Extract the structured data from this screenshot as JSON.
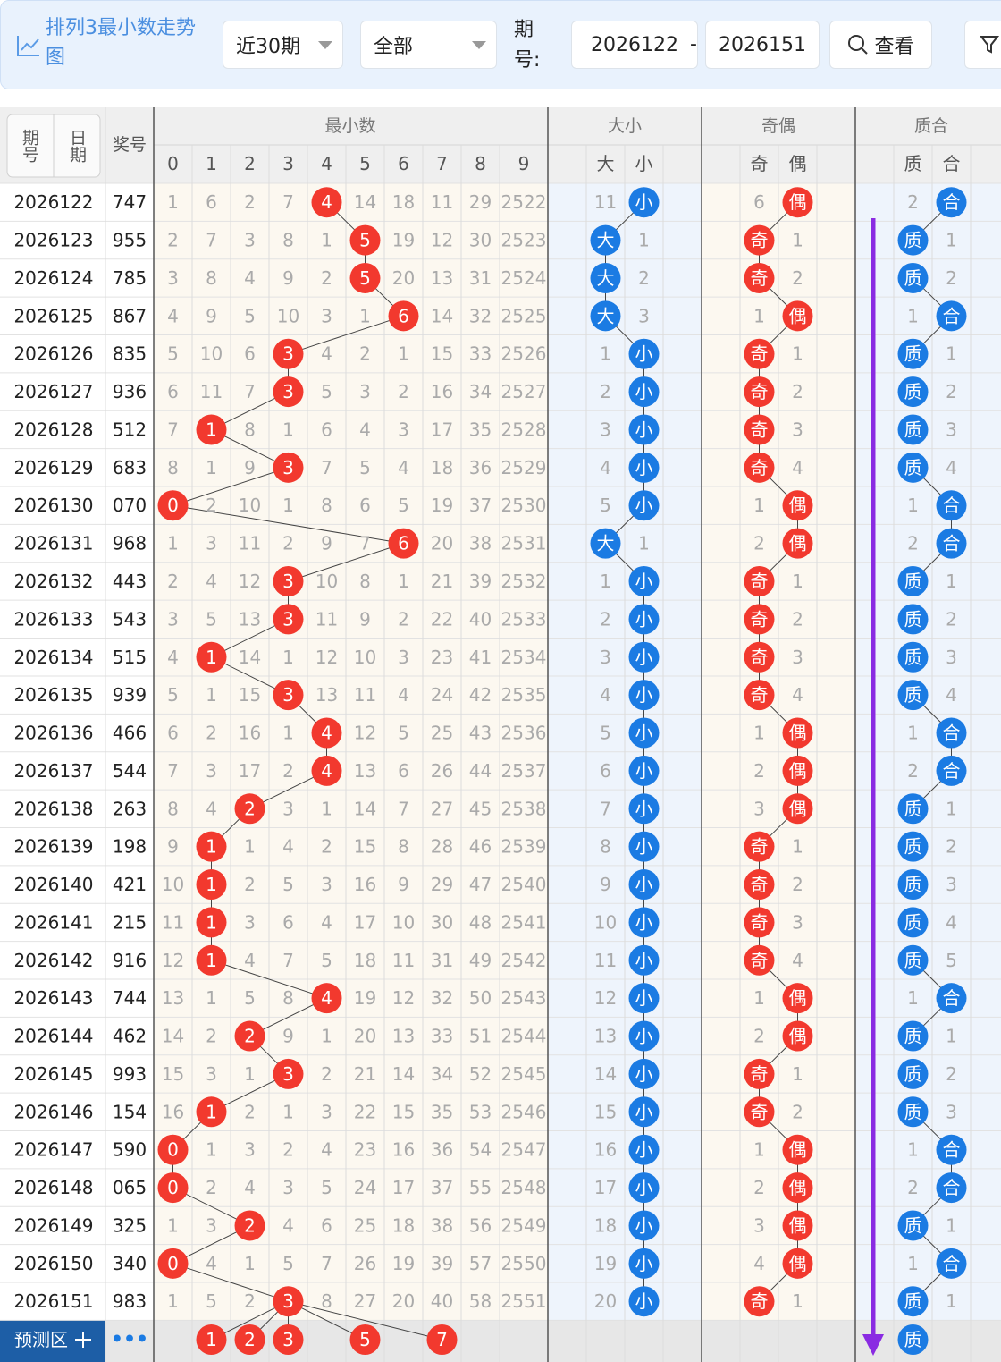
{
  "toolbar": {
    "title": "排列3最小数走势图",
    "range": "近30期",
    "filter": "全部",
    "issue_label": "期号:",
    "issue_from": "2026122",
    "separator": "-",
    "issue_to": "2026151",
    "button": "查看"
  },
  "table": {
    "headers": {
      "issue": "期号",
      "date": "日期",
      "number": "奖号",
      "min_group": "最小数",
      "digits": [
        0,
        1,
        2,
        3,
        4,
        5,
        6,
        7,
        8,
        9
      ],
      "size_group": "大小",
      "size": [
        "大",
        "小"
      ],
      "parity_group": "奇偶",
      "parity": [
        "奇",
        "偶"
      ],
      "prime_group": "质合",
      "prime": [
        "质",
        "合"
      ]
    },
    "rows": [
      {
        "issue": "2026122",
        "number": "747",
        "min_digit": 4,
        "digits": [
          1,
          6,
          2,
          7,
          4,
          14,
          18,
          11,
          29,
          2522
        ],
        "size": [
          11,
          "小"
        ],
        "parity": [
          6,
          "偶"
        ],
        "prime": [
          2,
          "合"
        ]
      },
      {
        "issue": "2026123",
        "number": "955",
        "min_digit": 5,
        "digits": [
          2,
          7,
          3,
          8,
          1,
          5,
          19,
          12,
          30,
          2523
        ],
        "size": [
          "大",
          1
        ],
        "parity": [
          "奇",
          1
        ],
        "prime": [
          "质",
          1
        ]
      },
      {
        "issue": "2026124",
        "number": "785",
        "min_digit": 5,
        "digits": [
          3,
          8,
          4,
          9,
          2,
          5,
          20,
          13,
          31,
          2524
        ],
        "size": [
          "大",
          2
        ],
        "parity": [
          "奇",
          2
        ],
        "prime": [
          "质",
          2
        ]
      },
      {
        "issue": "2026125",
        "number": "867",
        "min_digit": 6,
        "digits": [
          4,
          9,
          5,
          10,
          3,
          1,
          6,
          14,
          32,
          2525
        ],
        "size": [
          "大",
          3
        ],
        "parity": [
          1,
          "偶"
        ],
        "prime": [
          1,
          "合"
        ]
      },
      {
        "issue": "2026126",
        "number": "835",
        "min_digit": 3,
        "digits": [
          5,
          10,
          6,
          3,
          4,
          2,
          1,
          15,
          33,
          2526
        ],
        "size": [
          1,
          "小"
        ],
        "parity": [
          "奇",
          1
        ],
        "prime": [
          "质",
          1
        ]
      },
      {
        "issue": "2026127",
        "number": "936",
        "min_digit": 3,
        "digits": [
          6,
          11,
          7,
          3,
          5,
          3,
          2,
          16,
          34,
          2527
        ],
        "size": [
          2,
          "小"
        ],
        "parity": [
          "奇",
          2
        ],
        "prime": [
          "质",
          2
        ]
      },
      {
        "issue": "2026128",
        "number": "512",
        "min_digit": 1,
        "digits": [
          7,
          1,
          8,
          1,
          6,
          4,
          3,
          17,
          35,
          2528
        ],
        "size": [
          3,
          "小"
        ],
        "parity": [
          "奇",
          3
        ],
        "prime": [
          "质",
          3
        ]
      },
      {
        "issue": "2026129",
        "number": "683",
        "min_digit": 3,
        "digits": [
          8,
          1,
          9,
          3,
          7,
          5,
          4,
          18,
          36,
          2529
        ],
        "size": [
          4,
          "小"
        ],
        "parity": [
          "奇",
          4
        ],
        "prime": [
          "质",
          4
        ]
      },
      {
        "issue": "2026130",
        "number": "070",
        "min_digit": 0,
        "digits": [
          0,
          2,
          10,
          1,
          8,
          6,
          5,
          19,
          37,
          2530
        ],
        "size": [
          5,
          "小"
        ],
        "parity": [
          1,
          "偶"
        ],
        "prime": [
          1,
          "合"
        ]
      },
      {
        "issue": "2026131",
        "number": "968",
        "min_digit": 6,
        "digits": [
          1,
          3,
          11,
          2,
          9,
          7,
          6,
          20,
          38,
          2531
        ],
        "size": [
          "大",
          1
        ],
        "parity": [
          2,
          "偶"
        ],
        "prime": [
          2,
          "合"
        ]
      },
      {
        "issue": "2026132",
        "number": "443",
        "min_digit": 3,
        "digits": [
          2,
          4,
          12,
          3,
          10,
          8,
          1,
          21,
          39,
          2532
        ],
        "size": [
          1,
          "小"
        ],
        "parity": [
          "奇",
          1
        ],
        "prime": [
          "质",
          1
        ]
      },
      {
        "issue": "2026133",
        "number": "543",
        "min_digit": 3,
        "digits": [
          3,
          5,
          13,
          3,
          11,
          9,
          2,
          22,
          40,
          2533
        ],
        "size": [
          2,
          "小"
        ],
        "parity": [
          "奇",
          2
        ],
        "prime": [
          "质",
          2
        ]
      },
      {
        "issue": "2026134",
        "number": "515",
        "min_digit": 1,
        "digits": [
          4,
          1,
          14,
          1,
          12,
          10,
          3,
          23,
          41,
          2534
        ],
        "size": [
          3,
          "小"
        ],
        "parity": [
          "奇",
          3
        ],
        "prime": [
          "质",
          3
        ]
      },
      {
        "issue": "2026135",
        "number": "939",
        "min_digit": 3,
        "digits": [
          5,
          1,
          15,
          3,
          13,
          11,
          4,
          24,
          42,
          2535
        ],
        "size": [
          4,
          "小"
        ],
        "parity": [
          "奇",
          4
        ],
        "prime": [
          "质",
          4
        ]
      },
      {
        "issue": "2026136",
        "number": "466",
        "min_digit": 4,
        "digits": [
          6,
          2,
          16,
          1,
          4,
          12,
          5,
          25,
          43,
          2536
        ],
        "size": [
          5,
          "小"
        ],
        "parity": [
          1,
          "偶"
        ],
        "prime": [
          1,
          "合"
        ]
      },
      {
        "issue": "2026137",
        "number": "544",
        "min_digit": 4,
        "digits": [
          7,
          3,
          17,
          2,
          4,
          13,
          6,
          26,
          44,
          2537
        ],
        "size": [
          6,
          "小"
        ],
        "parity": [
          2,
          "偶"
        ],
        "prime": [
          2,
          "合"
        ]
      },
      {
        "issue": "2026138",
        "number": "263",
        "min_digit": 2,
        "digits": [
          8,
          4,
          2,
          3,
          1,
          14,
          7,
          27,
          45,
          2538
        ],
        "size": [
          7,
          "小"
        ],
        "parity": [
          3,
          "偶"
        ],
        "prime": [
          "质",
          1
        ]
      },
      {
        "issue": "2026139",
        "number": "198",
        "min_digit": 1,
        "digits": [
          9,
          1,
          1,
          4,
          2,
          15,
          8,
          28,
          46,
          2539
        ],
        "size": [
          8,
          "小"
        ],
        "parity": [
          "奇",
          1
        ],
        "prime": [
          "质",
          2
        ]
      },
      {
        "issue": "2026140",
        "number": "421",
        "min_digit": 1,
        "digits": [
          10,
          1,
          2,
          5,
          3,
          16,
          9,
          29,
          47,
          2540
        ],
        "size": [
          9,
          "小"
        ],
        "parity": [
          "奇",
          2
        ],
        "prime": [
          "质",
          3
        ]
      },
      {
        "issue": "2026141",
        "number": "215",
        "min_digit": 1,
        "digits": [
          11,
          1,
          3,
          6,
          4,
          17,
          10,
          30,
          48,
          2541
        ],
        "size": [
          10,
          "小"
        ],
        "parity": [
          "奇",
          3
        ],
        "prime": [
          "质",
          4
        ]
      },
      {
        "issue": "2026142",
        "number": "916",
        "min_digit": 1,
        "digits": [
          12,
          1,
          4,
          7,
          5,
          18,
          11,
          31,
          49,
          2542
        ],
        "size": [
          11,
          "小"
        ],
        "parity": [
          "奇",
          4
        ],
        "prime": [
          "质",
          5
        ]
      },
      {
        "issue": "2026143",
        "number": "744",
        "min_digit": 4,
        "digits": [
          13,
          1,
          5,
          8,
          4,
          19,
          12,
          32,
          50,
          2543
        ],
        "size": [
          12,
          "小"
        ],
        "parity": [
          1,
          "偶"
        ],
        "prime": [
          1,
          "合"
        ]
      },
      {
        "issue": "2026144",
        "number": "462",
        "min_digit": 2,
        "digits": [
          14,
          2,
          2,
          9,
          1,
          20,
          13,
          33,
          51,
          2544
        ],
        "size": [
          13,
          "小"
        ],
        "parity": [
          2,
          "偶"
        ],
        "prime": [
          "质",
          1
        ]
      },
      {
        "issue": "2026145",
        "number": "993",
        "min_digit": 3,
        "digits": [
          15,
          3,
          1,
          3,
          2,
          21,
          14,
          34,
          52,
          2545
        ],
        "size": [
          14,
          "小"
        ],
        "parity": [
          "奇",
          1
        ],
        "prime": [
          "质",
          2
        ]
      },
      {
        "issue": "2026146",
        "number": "154",
        "min_digit": 1,
        "digits": [
          16,
          1,
          2,
          1,
          3,
          22,
          15,
          35,
          53,
          2546
        ],
        "size": [
          15,
          "小"
        ],
        "parity": [
          "奇",
          2
        ],
        "prime": [
          "质",
          3
        ]
      },
      {
        "issue": "2026147",
        "number": "590",
        "min_digit": 0,
        "digits": [
          0,
          1,
          3,
          2,
          4,
          23,
          16,
          36,
          54,
          2547
        ],
        "size": [
          16,
          "小"
        ],
        "parity": [
          1,
          "偶"
        ],
        "prime": [
          1,
          "合"
        ]
      },
      {
        "issue": "2026148",
        "number": "065",
        "min_digit": 0,
        "digits": [
          0,
          2,
          4,
          3,
          5,
          24,
          17,
          37,
          55,
          2548
        ],
        "size": [
          17,
          "小"
        ],
        "parity": [
          2,
          "偶"
        ],
        "prime": [
          2,
          "合"
        ]
      },
      {
        "issue": "2026149",
        "number": "325",
        "min_digit": 2,
        "digits": [
          1,
          3,
          2,
          4,
          6,
          25,
          18,
          38,
          56,
          2549
        ],
        "size": [
          18,
          "小"
        ],
        "parity": [
          3,
          "偶"
        ],
        "prime": [
          "质",
          1
        ]
      },
      {
        "issue": "2026150",
        "number": "340",
        "min_digit": 0,
        "digits": [
          0,
          4,
          1,
          5,
          7,
          26,
          19,
          39,
          57,
          2550
        ],
        "size": [
          19,
          "小"
        ],
        "parity": [
          4,
          "偶"
        ],
        "prime": [
          1,
          "合"
        ]
      },
      {
        "issue": "2026151",
        "number": "983",
        "min_digit": 3,
        "digits": [
          1,
          5,
          2,
          3,
          8,
          27,
          20,
          40,
          58,
          2551
        ],
        "size": [
          20,
          "小"
        ],
        "parity": [
          "奇",
          1
        ],
        "prime": [
          "质",
          1
        ]
      }
    ],
    "forecast": {
      "label": "预测区",
      "more": "•••",
      "digits": [
        1,
        2,
        3,
        5,
        7
      ],
      "prime": "质"
    }
  },
  "colors": {
    "red": "#f2392e",
    "blue": "#1b7be3"
  }
}
